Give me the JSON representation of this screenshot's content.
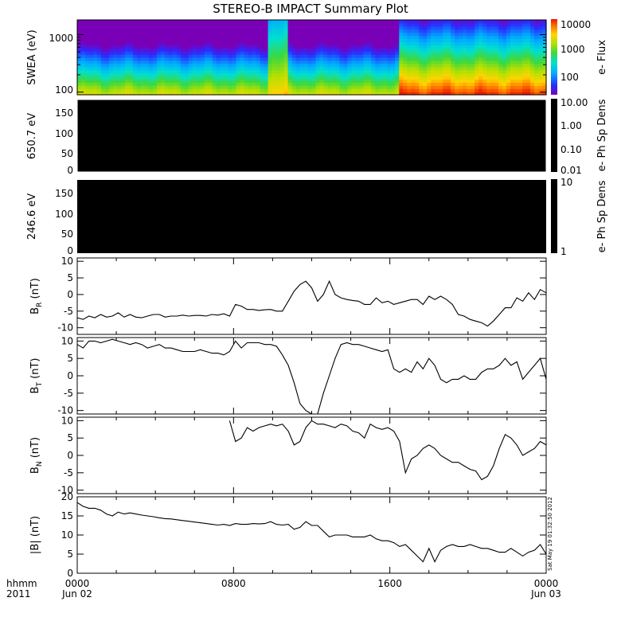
{
  "title": "STEREO-B IMPACT Summary Plot",
  "stamp": "Sat May 19 01:32:50 2012",
  "time_axis": {
    "row1_label": "hhmm",
    "row2_label": "2011",
    "ticks": [
      {
        "hour": 0,
        "hhmm": "0000",
        "date": "Jun 02"
      },
      {
        "hour": 8,
        "hhmm": "0800",
        "date": ""
      },
      {
        "hour": 16,
        "hhmm": "1600",
        "date": ""
      },
      {
        "hour": 24,
        "hhmm": "0000",
        "date": "Jun 03"
      }
    ]
  },
  "swea": {
    "ylabel": "SWEA (eV)",
    "yticks": [
      "1000",
      "100"
    ],
    "colorbar": {
      "label": "e- Flux",
      "ticks": [
        "10000",
        "1000",
        "100"
      ]
    }
  },
  "pad1": {
    "ylabel": "650.7 eV",
    "yticks": [
      "150",
      "100",
      "50",
      "0"
    ],
    "colorbar": {
      "label": "e- Ph Sp Dens",
      "ticks": [
        "10.00",
        "1.00",
        "0.10",
        "0.01"
      ]
    }
  },
  "pad2": {
    "ylabel": "246.6 eV",
    "yticks": [
      "150",
      "100",
      "50",
      "0"
    ],
    "colorbar": {
      "label": "e- Ph Sp Dens",
      "ticks": [
        "10",
        "1"
      ]
    }
  },
  "chart_data": [
    {
      "type": "heatmap",
      "name": "SWEA electron flux spectrogram",
      "x_unit": "hours from Jun 02 0000",
      "xlim": [
        0,
        24
      ],
      "ylabel": "SWEA (eV)",
      "ylim_log": [
        90,
        1800
      ],
      "colorbar_label": "e- Flux",
      "color_range": [
        50,
        12000
      ],
      "regimes": [
        {
          "from": 0,
          "to": 9.8,
          "description": "moderate flux, steep falloff with energy"
        },
        {
          "from": 9.8,
          "to": 10.8,
          "description": "enhanced flux at high energies"
        },
        {
          "from": 10.8,
          "to": 16.4,
          "description": "moderate flux"
        },
        {
          "from": 16.4,
          "to": 24,
          "description": "strongly enhanced flux at low energies (red)"
        }
      ]
    },
    {
      "type": "heatmap",
      "name": "PAD 650.7 eV",
      "ylabel": "650.7 eV",
      "ylim": [
        0,
        180
      ],
      "values": "no data (black)"
    },
    {
      "type": "heatmap",
      "name": "PAD 246.6 eV",
      "ylabel": "246.6 eV",
      "ylim": [
        0,
        180
      ],
      "values": "no data (black)"
    },
    {
      "type": "line",
      "name": "BR",
      "ylabel": "B_R (nT)",
      "ylim": [
        -12,
        11
      ],
      "yticks": [
        "10",
        "5",
        "0",
        "-5",
        "-10"
      ],
      "x": [
        0.0,
        0.3,
        0.6,
        0.9,
        1.2,
        1.5,
        1.8,
        2.1,
        2.4,
        2.7,
        3.0,
        3.3,
        3.6,
        3.9,
        4.2,
        4.5,
        4.8,
        5.1,
        5.4,
        5.7,
        6.0,
        6.3,
        6.6,
        6.9,
        7.2,
        7.5,
        7.8,
        8.1,
        8.4,
        8.7,
        9.0,
        9.3,
        9.6,
        9.9,
        10.2,
        10.5,
        10.8,
        11.1,
        11.4,
        11.7,
        12.0,
        12.3,
        12.6,
        12.9,
        13.2,
        13.5,
        13.8,
        14.1,
        14.4,
        14.7,
        15.0,
        15.3,
        15.6,
        15.9,
        16.2,
        16.5,
        16.8,
        17.1,
        17.4,
        17.7,
        18.0,
        18.3,
        18.6,
        18.9,
        19.2,
        19.5,
        19.8,
        20.1,
        20.4,
        20.7,
        21.0,
        21.3,
        21.6,
        21.9,
        22.2,
        22.5,
        22.8,
        23.1,
        23.4,
        23.7,
        24.0
      ],
      "y": [
        -7,
        -7.5,
        -6.5,
        -7,
        -6,
        -6.8,
        -6.5,
        -5.5,
        -6.8,
        -6,
        -6.8,
        -7,
        -6.5,
        -6,
        -6,
        -6.8,
        -6.5,
        -6.5,
        -6.2,
        -6.5,
        -6.3,
        -6.3,
        -6.5,
        -6,
        -6.2,
        -5.8,
        -6.5,
        -3,
        -3.5,
        -4.5,
        -4.5,
        -4.8,
        -4.6,
        -4.5,
        -5,
        -5,
        -2,
        1,
        3,
        4,
        2,
        -2,
        0,
        4,
        0,
        -1,
        -1.5,
        -1.8,
        -2,
        -3,
        -3,
        -1,
        -2.5,
        -2,
        -3,
        -2.5,
        -2,
        -1.5,
        -1.5,
        -3,
        -0.5,
        -1.5,
        -0.5,
        -1.5,
        -3,
        -6,
        -6.5,
        -7.5,
        -8,
        -8.5,
        -9.5,
        -8,
        -6,
        -4,
        -4,
        -1,
        -2,
        0.5,
        -1.5,
        1.5,
        0.5
      ]
    },
    {
      "type": "line",
      "name": "BT",
      "ylabel": "B_T (nT)",
      "ylim": [
        -11,
        11
      ],
      "yticks": [
        "10",
        "5",
        "0",
        "-5",
        "-10"
      ],
      "x": [
        0.0,
        0.3,
        0.6,
        0.9,
        1.2,
        1.5,
        1.8,
        2.1,
        2.4,
        2.7,
        3.0,
        3.3,
        3.6,
        3.9,
        4.2,
        4.5,
        4.8,
        5.1,
        5.4,
        5.7,
        6.0,
        6.3,
        6.6,
        6.9,
        7.2,
        7.5,
        7.8,
        8.1,
        8.4,
        8.7,
        9.0,
        9.3,
        9.6,
        9.9,
        10.2,
        10.5,
        10.8,
        11.1,
        11.4,
        11.7,
        12.0,
        12.3,
        12.6,
        12.9,
        13.2,
        13.5,
        13.8,
        14.1,
        14.4,
        14.7,
        15.0,
        15.3,
        15.6,
        15.9,
        16.2,
        16.5,
        16.8,
        17.1,
        17.4,
        17.7,
        18.0,
        18.3,
        18.6,
        18.9,
        19.2,
        19.5,
        19.8,
        20.1,
        20.4,
        20.7,
        21.0,
        21.3,
        21.6,
        21.9,
        22.2,
        22.5,
        22.8,
        23.1,
        23.4,
        23.7,
        24.0
      ],
      "y": [
        9,
        8,
        10,
        10,
        9.5,
        10,
        10.5,
        10,
        9.5,
        9,
        9.5,
        9,
        8,
        8.5,
        9,
        8,
        8,
        7.5,
        7,
        7,
        7,
        7.5,
        7,
        6.5,
        6.5,
        6,
        7,
        10,
        8,
        9.5,
        9.5,
        9.5,
        9,
        9,
        8.5,
        6,
        3,
        -2,
        -8,
        -10,
        -11,
        -11,
        -5,
        0,
        5,
        9,
        9.5,
        9,
        9,
        8.5,
        8,
        7.5,
        7,
        7.5,
        2,
        1,
        2,
        1,
        4,
        2,
        5,
        3,
        -1,
        -2,
        -1,
        -1,
        0,
        -1,
        -1,
        1,
        2,
        2,
        3,
        5,
        3,
        4,
        -1,
        1,
        3,
        5,
        -1
      ]
    },
    {
      "type": "line",
      "name": "BN",
      "ylabel": "B_N (nT)",
      "ylim": [
        -11,
        11
      ],
      "yticks": [
        "10",
        "5",
        "0",
        "-5",
        "-10"
      ],
      "x": [
        7.8,
        8.1,
        8.4,
        8.7,
        9.0,
        9.3,
        9.6,
        9.9,
        10.2,
        10.5,
        10.8,
        11.1,
        11.4,
        11.7,
        12.0,
        12.3,
        12.6,
        12.9,
        13.2,
        13.5,
        13.8,
        14.1,
        14.4,
        14.7,
        15.0,
        15.3,
        15.6,
        15.9,
        16.2,
        16.5,
        16.8,
        17.1,
        17.4,
        17.7,
        18.0,
        18.3,
        18.6,
        18.9,
        19.2,
        19.5,
        19.8,
        20.1,
        20.4,
        20.7,
        21.0,
        21.3,
        21.6,
        21.9,
        22.2,
        22.5,
        22.8,
        23.1,
        23.4,
        23.7,
        24.0
      ],
      "y": [
        10,
        4,
        5,
        8,
        7,
        8,
        8.5,
        9,
        8.5,
        9,
        7,
        3,
        4,
        8,
        10,
        9,
        9,
        8.5,
        8,
        9,
        8.5,
        7,
        6.5,
        5,
        9,
        8,
        7.5,
        8,
        7,
        4,
        -5,
        -1,
        0,
        2,
        3,
        2,
        0,
        -1,
        -2,
        -2,
        -3,
        -4,
        -4.5,
        -7,
        -6,
        -3,
        2,
        6,
        5,
        3,
        0,
        1,
        2,
        4,
        3
      ]
    },
    {
      "type": "line",
      "name": "|B|",
      "ylabel": "|B| (nT)",
      "ylim": [
        0,
        20
      ],
      "yticks": [
        "20",
        "15",
        "10",
        "5",
        "0"
      ],
      "x": [
        0.0,
        0.3,
        0.6,
        0.9,
        1.2,
        1.5,
        1.8,
        2.1,
        2.4,
        2.7,
        3.0,
        3.3,
        3.6,
        3.9,
        4.2,
        4.5,
        4.8,
        5.1,
        5.4,
        5.7,
        6.0,
        6.3,
        6.6,
        6.9,
        7.2,
        7.5,
        7.8,
        8.1,
        8.4,
        8.7,
        9.0,
        9.3,
        9.6,
        9.9,
        10.2,
        10.5,
        10.8,
        11.1,
        11.4,
        11.7,
        12.0,
        12.3,
        12.6,
        12.9,
        13.2,
        13.5,
        13.8,
        14.1,
        14.4,
        14.7,
        15.0,
        15.3,
        15.6,
        15.9,
        16.2,
        16.5,
        16.8,
        17.1,
        17.4,
        17.7,
        18.0,
        18.3,
        18.6,
        18.9,
        19.2,
        19.5,
        19.8,
        20.1,
        20.4,
        20.7,
        21.0,
        21.3,
        21.6,
        21.9,
        22.2,
        22.5,
        22.8,
        23.1,
        23.4,
        23.7,
        24.0
      ],
      "y": [
        18.5,
        17.5,
        17,
        17,
        16.5,
        15.5,
        15,
        16,
        15.5,
        15.8,
        15.5,
        15.2,
        15,
        14.8,
        14.5,
        14.3,
        14.2,
        14,
        13.8,
        13.6,
        13.4,
        13.2,
        13,
        12.8,
        12.6,
        12.8,
        12.5,
        13,
        12.8,
        12.8,
        13,
        12.9,
        13,
        13.5,
        12.8,
        12.6,
        12.8,
        11.5,
        12,
        13.5,
        12.5,
        12.5,
        11,
        9.5,
        10,
        10,
        10,
        9.5,
        9.5,
        9.5,
        10,
        9,
        8.5,
        8.5,
        8,
        7,
        7.5,
        6,
        4.5,
        3,
        6.5,
        3,
        6,
        7,
        7.5,
        7,
        7,
        7.5,
        7,
        6.5,
        6.5,
        6,
        5.5,
        5.5,
        6.5,
        5.5,
        4.5,
        5.5,
        6,
        7.5,
        5
      ]
    }
  ]
}
